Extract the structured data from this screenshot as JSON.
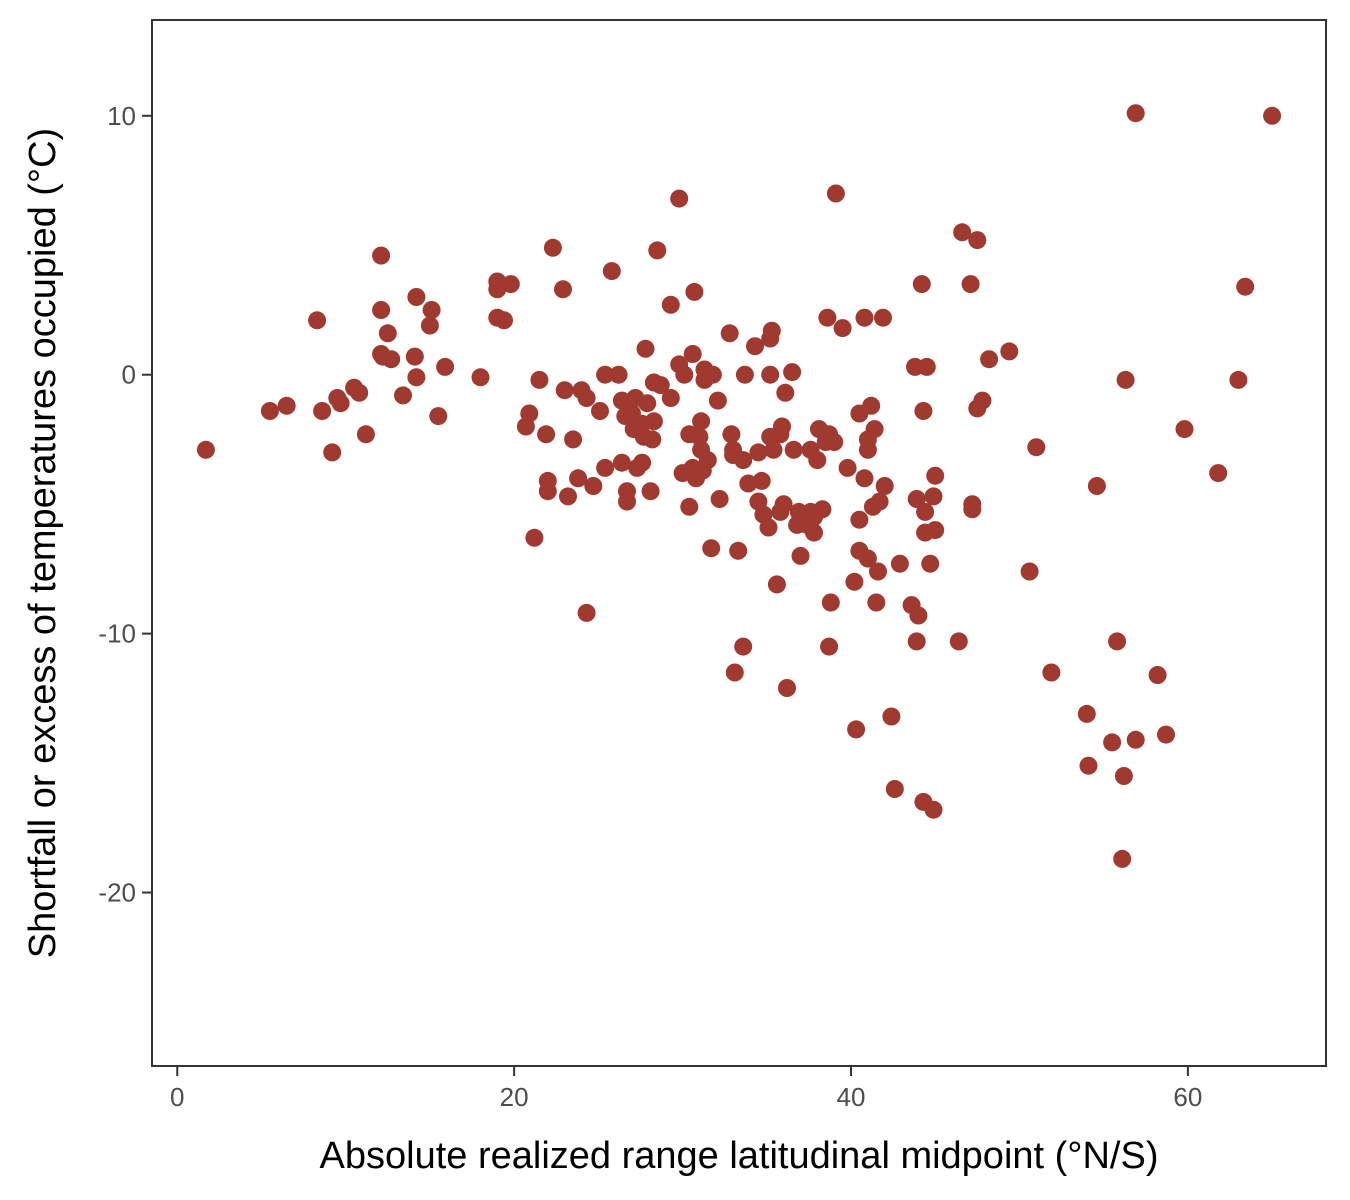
{
  "chart_data": {
    "type": "scatter",
    "title": "",
    "xlabel": "Absolute realized range latitudinal midpoint (°N/S)",
    "ylabel": "Shortfall or excess of temperatures occupied (°C)",
    "xlim": [
      -1.5,
      68.2
    ],
    "ylim": [
      -26.7,
      13.7
    ],
    "x_ticks": [
      0,
      20,
      40,
      60
    ],
    "y_ticks": [
      10,
      0,
      -10,
      -20
    ],
    "x_tick_labels": [
      "0",
      "20",
      "40",
      "60"
    ],
    "y_tick_labels": [
      "10",
      "0",
      "-10",
      "-20"
    ],
    "grid": false,
    "point_color": "#a0392f",
    "points": [
      [
        1.7,
        -2.9
      ],
      [
        5.5,
        -1.4
      ],
      [
        6.5,
        -1.2
      ],
      [
        8.3,
        2.1
      ],
      [
        8.6,
        -1.4
      ],
      [
        9.2,
        -3.0
      ],
      [
        9.5,
        -0.9
      ],
      [
        9.7,
        -1.1
      ],
      [
        10.5,
        -0.5
      ],
      [
        10.8,
        -0.7
      ],
      [
        11.2,
        -2.3
      ],
      [
        12.1,
        4.6
      ],
      [
        12.1,
        2.5
      ],
      [
        12.1,
        0.8
      ],
      [
        12.2,
        0.7
      ],
      [
        12.5,
        1.6
      ],
      [
        12.7,
        0.6
      ],
      [
        13.4,
        -0.8
      ],
      [
        14.1,
        0.7
      ],
      [
        14.2,
        -0.1
      ],
      [
        14.2,
        3.0
      ],
      [
        15.0,
        1.9
      ],
      [
        15.1,
        2.5
      ],
      [
        15.5,
        -1.6
      ],
      [
        15.9,
        0.3
      ],
      [
        18.0,
        -0.1
      ],
      [
        19.0,
        3.6
      ],
      [
        19.0,
        3.3
      ],
      [
        19.0,
        2.2
      ],
      [
        19.4,
        2.1
      ],
      [
        19.8,
        3.5
      ],
      [
        20.7,
        -2.0
      ],
      [
        20.9,
        -1.5
      ],
      [
        21.2,
        -6.3
      ],
      [
        21.5,
        -0.2
      ],
      [
        21.9,
        -2.3
      ],
      [
        22.0,
        -4.1
      ],
      [
        22.0,
        -4.5
      ],
      [
        22.3,
        4.9
      ],
      [
        22.9,
        3.3
      ],
      [
        23.0,
        -0.6
      ],
      [
        23.2,
        -4.7
      ],
      [
        23.5,
        -2.5
      ],
      [
        23.8,
        -4.0
      ],
      [
        24.0,
        -0.6
      ],
      [
        24.3,
        -0.9
      ],
      [
        24.3,
        -9.2
      ],
      [
        24.7,
        -4.3
      ],
      [
        25.1,
        -1.4
      ],
      [
        25.4,
        -0.0
      ],
      [
        25.4,
        -3.6
      ],
      [
        25.8,
        4.0
      ],
      [
        26.2,
        -0.0
      ],
      [
        26.4,
        -1.0
      ],
      [
        26.4,
        -3.4
      ],
      [
        26.6,
        -1.6
      ],
      [
        26.7,
        -4.5
      ],
      [
        26.7,
        -4.9
      ],
      [
        26.8,
        -1.3
      ],
      [
        27.0,
        -1.5
      ],
      [
        27.1,
        -2.1
      ],
      [
        27.2,
        -0.9
      ],
      [
        27.3,
        -3.6
      ],
      [
        27.6,
        -1.9
      ],
      [
        27.6,
        -3.4
      ],
      [
        27.7,
        -2.4
      ],
      [
        27.8,
        1.0
      ],
      [
        27.9,
        -1.1
      ],
      [
        28.1,
        -4.5
      ],
      [
        28.2,
        -2.5
      ],
      [
        28.3,
        -1.8
      ],
      [
        28.3,
        -0.3
      ],
      [
        28.5,
        4.8
      ],
      [
        28.7,
        -0.4
      ],
      [
        29.3,
        2.7
      ],
      [
        29.3,
        -0.9
      ],
      [
        29.8,
        6.8
      ],
      [
        29.8,
        0.4
      ],
      [
        30.0,
        -3.8
      ],
      [
        30.1,
        -0.0
      ],
      [
        30.4,
        -5.1
      ],
      [
        30.4,
        -2.3
      ],
      [
        30.6,
        0.8
      ],
      [
        30.6,
        -3.6
      ],
      [
        30.7,
        3.2
      ],
      [
        30.8,
        -4.0
      ],
      [
        31.0,
        -2.4
      ],
      [
        31.1,
        -2.9
      ],
      [
        31.1,
        -1.8
      ],
      [
        31.2,
        -3.7
      ],
      [
        31.3,
        -0.2
      ],
      [
        31.3,
        0.2
      ],
      [
        31.5,
        -3.3
      ],
      [
        31.7,
        -6.7
      ],
      [
        31.8,
        -0.0
      ],
      [
        32.1,
        -1.0
      ],
      [
        32.2,
        -4.8
      ],
      [
        32.8,
        1.6
      ],
      [
        32.9,
        -2.3
      ],
      [
        33.0,
        -2.9
      ],
      [
        33.0,
        -3.1
      ],
      [
        33.1,
        -11.5
      ],
      [
        33.3,
        -6.8
      ],
      [
        33.6,
        -3.3
      ],
      [
        33.6,
        -10.5
      ],
      [
        33.7,
        -0.0
      ],
      [
        33.9,
        -4.2
      ],
      [
        34.3,
        1.1
      ],
      [
        34.5,
        -3.0
      ],
      [
        34.5,
        -4.9
      ],
      [
        34.7,
        -4.1
      ],
      [
        34.8,
        -5.4
      ],
      [
        35.1,
        -5.9
      ],
      [
        35.2,
        -0.0
      ],
      [
        35.2,
        -2.4
      ],
      [
        35.2,
        1.4
      ],
      [
        35.3,
        1.7
      ],
      [
        35.4,
        -2.9
      ],
      [
        35.6,
        -8.1
      ],
      [
        35.8,
        -2.3
      ],
      [
        35.8,
        -5.3
      ],
      [
        35.9,
        -2.0
      ],
      [
        36.0,
        -5.0
      ],
      [
        36.1,
        -0.7
      ],
      [
        36.2,
        -12.1
      ],
      [
        36.5,
        0.1
      ],
      [
        36.6,
        -2.9
      ],
      [
        36.8,
        -5.8
      ],
      [
        36.9,
        -5.3
      ],
      [
        37.0,
        -7.0
      ],
      [
        37.4,
        -5.8
      ],
      [
        37.6,
        -5.3
      ],
      [
        37.6,
        -2.9
      ],
      [
        37.8,
        -6.1
      ],
      [
        37.8,
        -5.5
      ],
      [
        38.0,
        -3.3
      ],
      [
        38.1,
        -2.1
      ],
      [
        38.3,
        -5.2
      ],
      [
        38.5,
        -2.6
      ],
      [
        38.6,
        2.2
      ],
      [
        38.7,
        -2.3
      ],
      [
        38.7,
        -10.5
      ],
      [
        38.8,
        -8.8
      ],
      [
        39.0,
        -2.6
      ],
      [
        39.1,
        7.0
      ],
      [
        39.5,
        1.8
      ],
      [
        39.8,
        -3.6
      ],
      [
        40.2,
        -8.0
      ],
      [
        40.3,
        -13.7
      ],
      [
        40.5,
        -1.5
      ],
      [
        40.5,
        -5.6
      ],
      [
        40.5,
        -6.8
      ],
      [
        40.8,
        2.2
      ],
      [
        40.8,
        -4.0
      ],
      [
        41.0,
        -2.9
      ],
      [
        41.0,
        -2.5
      ],
      [
        41.0,
        -7.1
      ],
      [
        41.2,
        -1.2
      ],
      [
        41.3,
        -5.1
      ],
      [
        41.4,
        -2.1
      ],
      [
        41.5,
        -8.8
      ],
      [
        41.6,
        -7.6
      ],
      [
        41.7,
        -4.9
      ],
      [
        41.9,
        2.2
      ],
      [
        42.0,
        -4.3
      ],
      [
        42.4,
        -13.2
      ],
      [
        42.6,
        -16.0
      ],
      [
        42.9,
        -7.3
      ],
      [
        43.6,
        -8.9
      ],
      [
        43.8,
        0.3
      ],
      [
        43.9,
        -4.8
      ],
      [
        43.9,
        -10.3
      ],
      [
        44.0,
        -9.3
      ],
      [
        44.2,
        3.5
      ],
      [
        44.3,
        -16.5
      ],
      [
        44.3,
        -1.4
      ],
      [
        44.4,
        -5.3
      ],
      [
        44.4,
        -6.1
      ],
      [
        44.5,
        0.3
      ],
      [
        44.7,
        -7.3
      ],
      [
        44.9,
        -4.7
      ],
      [
        44.9,
        -16.8
      ],
      [
        45.0,
        -3.9
      ],
      [
        45.0,
        -6.0
      ],
      [
        46.4,
        -10.3
      ],
      [
        46.6,
        5.5
      ],
      [
        47.1,
        3.5
      ],
      [
        47.2,
        -5.0
      ],
      [
        47.2,
        -5.2
      ],
      [
        47.5,
        5.2
      ],
      [
        47.5,
        -1.3
      ],
      [
        47.8,
        -1.0
      ],
      [
        48.2,
        0.6
      ],
      [
        49.4,
        0.9
      ],
      [
        50.6,
        -7.6
      ],
      [
        51.0,
        -2.8
      ],
      [
        51.9,
        -11.5
      ],
      [
        54.0,
        -13.1
      ],
      [
        54.1,
        -15.1
      ],
      [
        54.6,
        -4.3
      ],
      [
        55.5,
        -14.2
      ],
      [
        55.8,
        -10.3
      ],
      [
        56.1,
        -18.7
      ],
      [
        56.2,
        -15.5
      ],
      [
        56.3,
        -0.2
      ],
      [
        56.9,
        10.1
      ],
      [
        56.9,
        -14.1
      ],
      [
        58.2,
        -11.6
      ],
      [
        58.7,
        -13.9
      ],
      [
        59.8,
        -2.1
      ],
      [
        61.8,
        -3.8
      ],
      [
        63.0,
        -0.2
      ],
      [
        63.4,
        3.4
      ],
      [
        65.0,
        10.0
      ]
    ]
  }
}
